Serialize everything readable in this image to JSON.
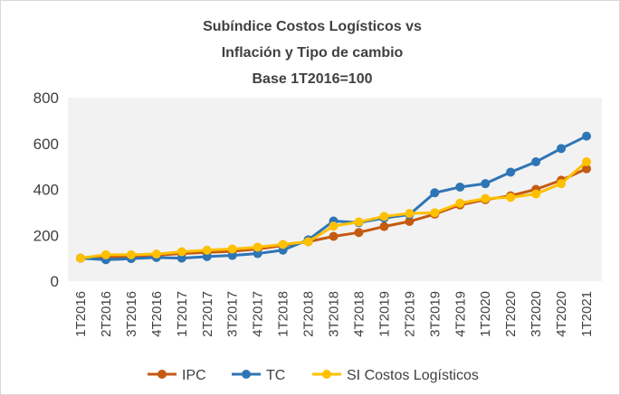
{
  "chart_data": {
    "type": "line",
    "title": [
      "Subíndice Costos Logísticos vs",
      "Inflación y Tipo de cambio",
      "Base 1T2016=100"
    ],
    "categories": [
      "1T2016",
      "2T2016",
      "3T2016",
      "4T2016",
      "1T2017",
      "2T2017",
      "3T2017",
      "4T2017",
      "1T2018",
      "2T2018",
      "3T2018",
      "4T2018",
      "1T2019",
      "2T2019",
      "3T2019",
      "4T2019",
      "1T2020",
      "2T2020",
      "3T2020",
      "4T2020",
      "1T2021"
    ],
    "series": [
      {
        "name": "IPC",
        "color": "#c55a11",
        "values": [
          100,
          105,
          108,
          113,
          120,
          125,
          130,
          140,
          155,
          172,
          195,
          212,
          238,
          260,
          292,
          332,
          355,
          372,
          400,
          440,
          490
        ]
      },
      {
        "name": "TC",
        "color": "#2e75b6",
        "values": [
          100,
          93,
          98,
          103,
          100,
          107,
          112,
          120,
          135,
          180,
          262,
          255,
          275,
          290,
          385,
          410,
          425,
          475,
          520,
          578,
          632
        ]
      },
      {
        "name": "SI Costos Logísticos",
        "color": "#ffc000",
        "values": [
          100,
          115,
          115,
          118,
          128,
          135,
          140,
          148,
          160,
          172,
          240,
          258,
          282,
          295,
          298,
          340,
          360,
          365,
          380,
          425,
          520
        ]
      }
    ],
    "ylim": [
      0,
      800
    ],
    "yticks": [
      0,
      200,
      400,
      600,
      800
    ],
    "grid": false,
    "legend": "bottom"
  }
}
